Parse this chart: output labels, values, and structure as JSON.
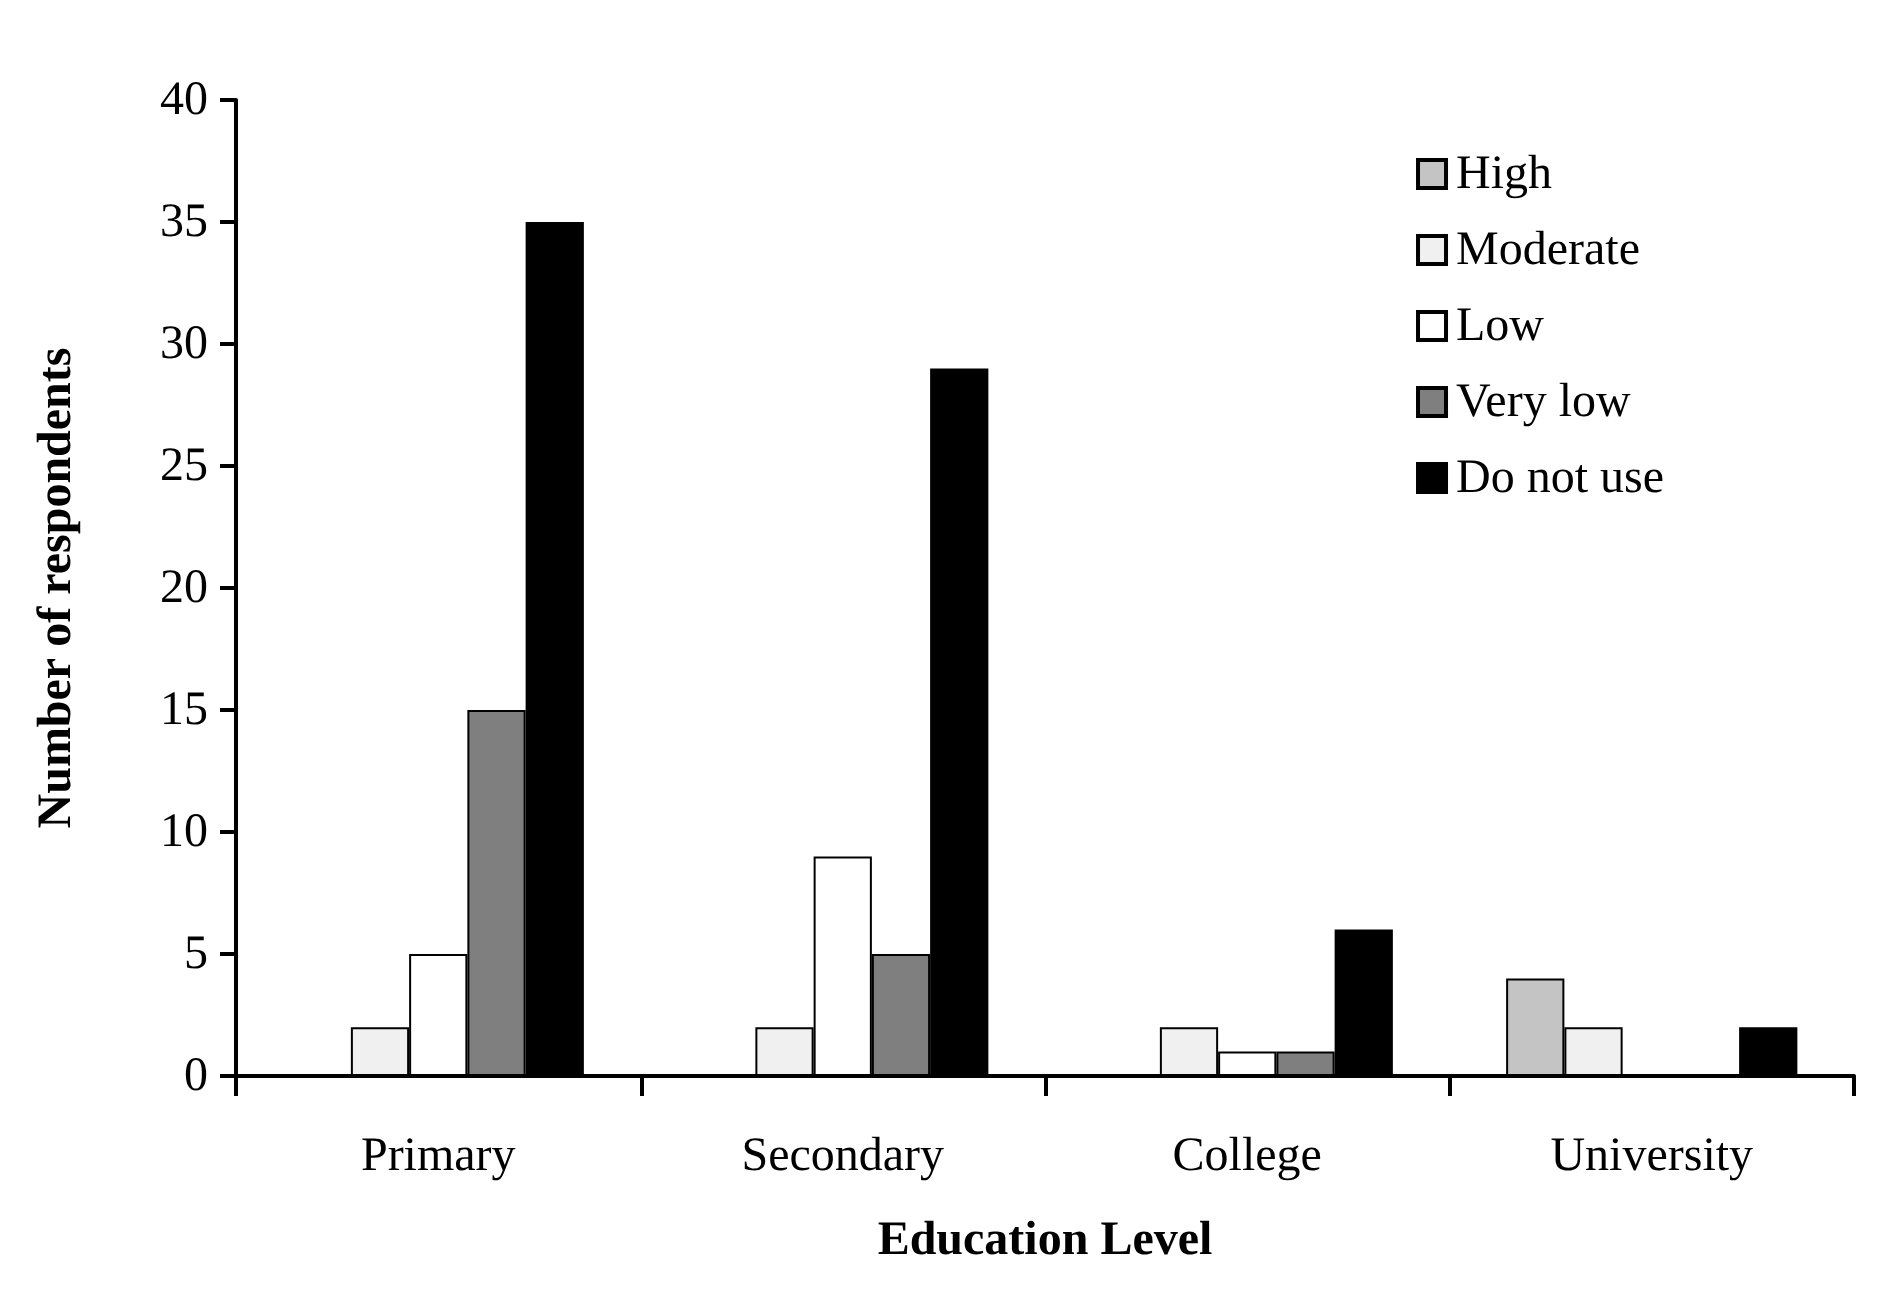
{
  "chart_data": {
    "type": "bar",
    "xlabel": "Education Level",
    "ylabel": "Number of respondents",
    "categories": [
      "Primary",
      "Secondary",
      "College",
      "University"
    ],
    "series": [
      {
        "name": "High",
        "color": "#c4c4c4",
        "values": [
          0,
          0,
          0,
          4
        ]
      },
      {
        "name": "Moderate",
        "color": "#f0f0f0",
        "values": [
          2,
          2,
          2,
          2
        ]
      },
      {
        "name": "Low",
        "color": "#ffffff",
        "values": [
          5,
          9,
          1,
          0
        ]
      },
      {
        "name": "Very low",
        "color": "#7f7f7f",
        "values": [
          15,
          5,
          1,
          0
        ]
      },
      {
        "name": "Do not use",
        "color": "#000000",
        "values": [
          35,
          29,
          6,
          2
        ]
      }
    ],
    "ylim": [
      0,
      40
    ],
    "yticks": [
      0,
      5,
      10,
      15,
      20,
      25,
      30,
      35,
      40
    ],
    "grid": false,
    "legend": "top right"
  }
}
